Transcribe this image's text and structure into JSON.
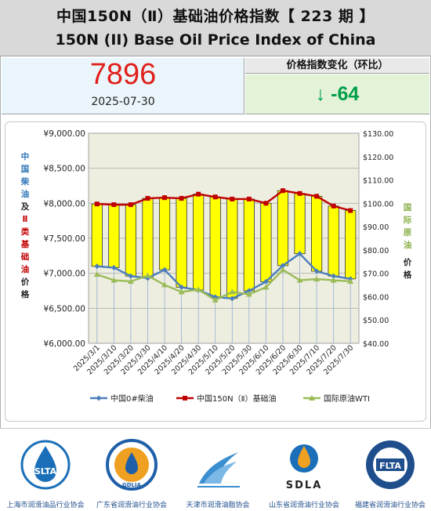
{
  "header": {
    "title_cn": "中国150N（Ⅱ）基础油价格指数【    223 期  】",
    "title_en": "150N  (II)  Base Oil Price Index of China"
  },
  "index": {
    "value": "7896",
    "date": "2025-07-30"
  },
  "change": {
    "label": "价格指数变化（环比）",
    "value": "↓ -64"
  },
  "chart_data": {
    "type": "line",
    "x": [
      "2025/3/1",
      "2025/3/10",
      "2025/3/20",
      "2025/3/30",
      "2025/4/10",
      "2025/4/20",
      "2025/4/30",
      "2025/5/10",
      "2025/5/20",
      "2025/5/30",
      "2025/6/10",
      "2025/6/20",
      "2025/6/30",
      "2025/7/10",
      "2025/7/20",
      "2025/7/30"
    ],
    "series": [
      {
        "name": "中国0#柴油",
        "axis": "left",
        "color": "#4a7ebb",
        "values": [
          7100,
          7080,
          6960,
          6930,
          7050,
          6800,
          6760,
          6660,
          6640,
          6750,
          6880,
          7110,
          7280,
          7030,
          6960,
          6920
        ]
      },
      {
        "name": "中国150N（Ⅱ）基础油",
        "axis": "left",
        "color": "#c00000",
        "values": [
          7990,
          7980,
          7980,
          8070,
          8080,
          8070,
          8130,
          8090,
          8060,
          8060,
          8000,
          8180,
          8140,
          8100,
          7960,
          7896
        ]
      },
      {
        "name": "国际原油WTI",
        "axis": "right",
        "color": "#9bbb59",
        "values": [
          69.5,
          67.0,
          66.5,
          69.0,
          65.0,
          62.0,
          63.0,
          58.5,
          62.0,
          61.0,
          64.0,
          71.5,
          67.0,
          67.5,
          67.0,
          66.5
        ]
      }
    ],
    "left_axis": {
      "ylim": [
        6000,
        9000
      ],
      "ticks": [
        "¥6,000.00",
        "¥6,500.00",
        "¥7,000.00",
        "¥7,500.00",
        "¥8,000.00",
        "¥8,500.00",
        "¥9,000.00"
      ],
      "label_blue": [
        "中",
        "国",
        "柴",
        "油"
      ],
      "label_black_1": [
        "及"
      ],
      "label_red": [
        "Ⅱ",
        "类",
        "基",
        "础",
        "油"
      ],
      "label_black_2": [
        "价",
        "格"
      ]
    },
    "right_axis": {
      "ylim": [
        40,
        130
      ],
      "ticks": [
        "$40.00",
        "$50.00",
        "$60.00",
        "$70.00",
        "$80.00",
        "$90.00",
        "$100.00",
        "$110.00",
        "$120.00",
        "$130.00"
      ],
      "label_green": [
        "国",
        "际",
        "原",
        "油"
      ],
      "label_black": [
        "价",
        "格"
      ]
    },
    "bars": "yellow floating bars between 中国0#柴油 and 中国150N（Ⅱ）基础油",
    "grid": "horizontal",
    "legend_position": "bottom",
    "legend": [
      "中国0#柴油",
      "中国150N（Ⅱ）基础油",
      "国际原油WTI"
    ]
  },
  "footer": {
    "associations": [
      {
        "logo_text": "SLTA",
        "name": "上海市润滑油品行业协会",
        "color": "#1a6fb8"
      },
      {
        "logo_text": "GDLIA",
        "name": "广东省润滑油行业协会",
        "color": "#1f5fa8"
      },
      {
        "logo_text": "",
        "name": "天津市润滑油脂协会",
        "color": "#3b8fd1"
      },
      {
        "logo_text": "SDLA",
        "name": "山东省润滑油行业协会",
        "color": "#222222"
      },
      {
        "logo_text": "FLTA",
        "name": "福建省润滑油行业协会",
        "color": "#1f4e8c"
      }
    ]
  }
}
